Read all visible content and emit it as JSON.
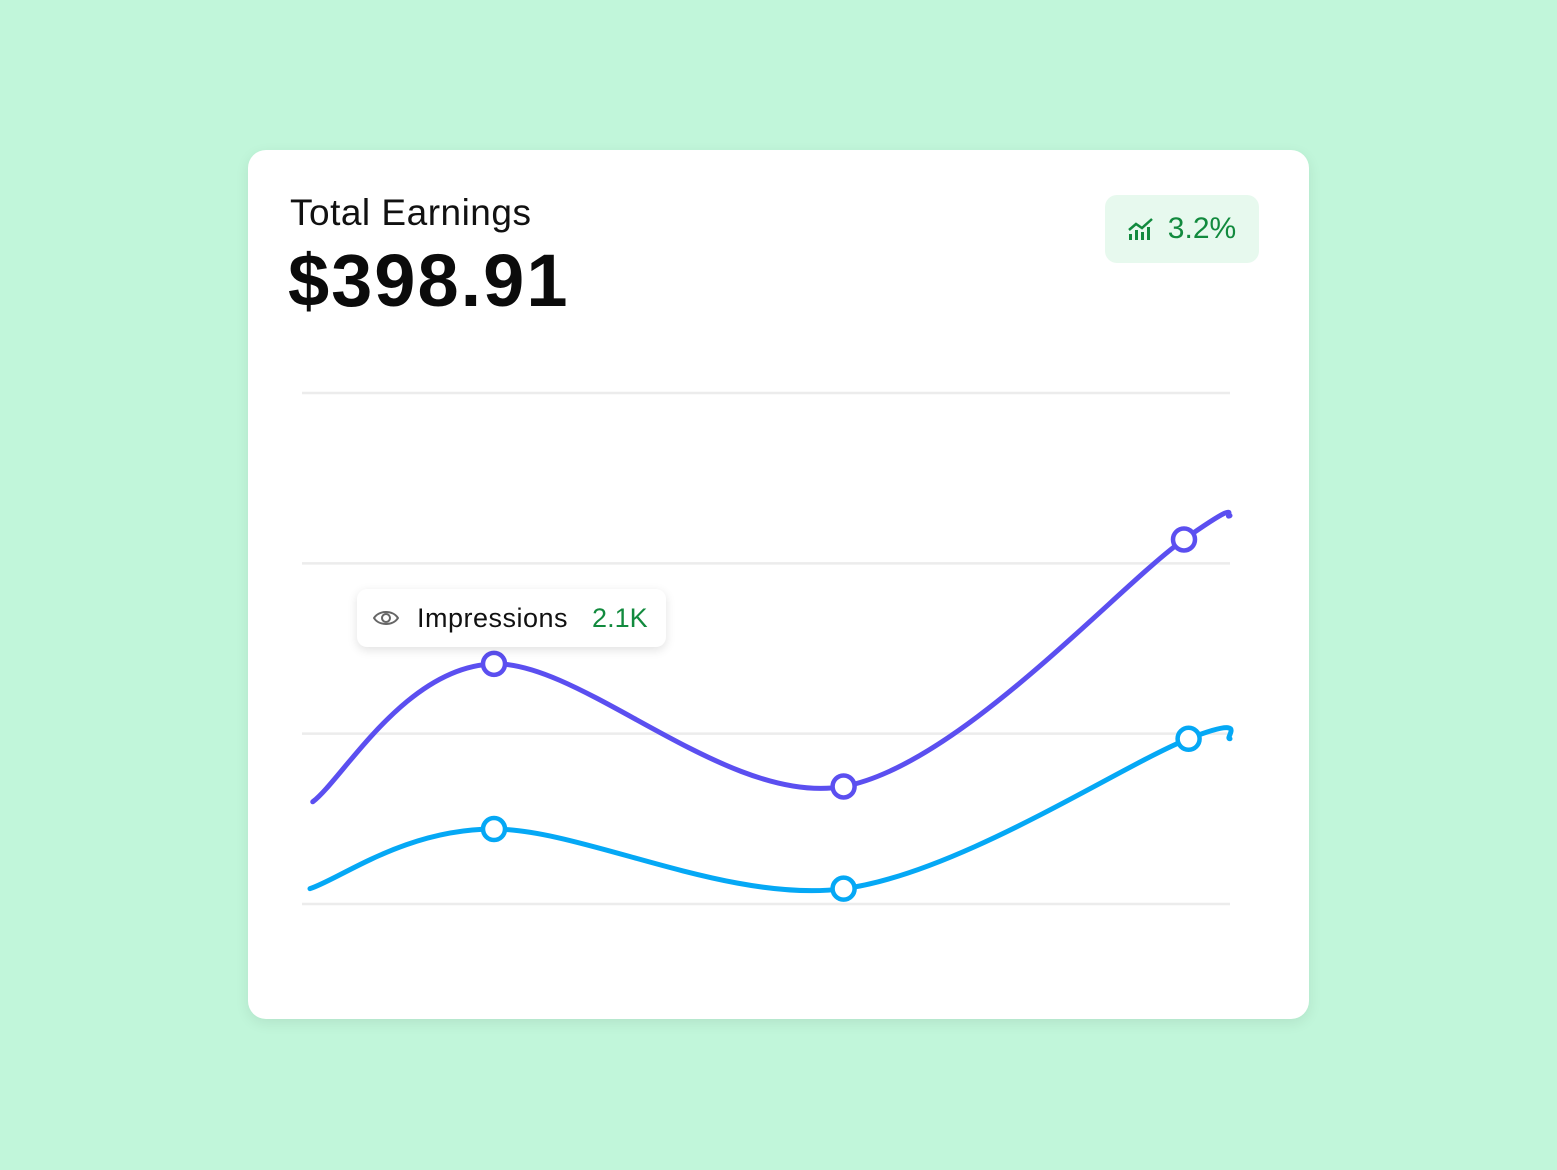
{
  "card": {
    "title": "Total Earnings",
    "amount": "$398.91",
    "badge": {
      "icon": "trend-chart-icon",
      "value": "3.2%",
      "color": "#128a3e"
    }
  },
  "tooltip": {
    "icon": "eye-icon",
    "label": "Impressions",
    "value": "2.1K"
  },
  "chart_data": {
    "type": "line",
    "smooth": true,
    "grid": true,
    "xlim": [
      0,
      10
    ],
    "ylim": [
      0,
      3
    ],
    "series": [
      {
        "color": "#5b4ff0",
        "points": [
          [
            0.03,
            0.6
          ],
          [
            2.0,
            1.41
          ],
          [
            5.8,
            0.69
          ],
          [
            9.5,
            2.14
          ],
          [
            10,
            2.28
          ]
        ],
        "markers": [
          1,
          2,
          3
        ]
      },
      {
        "color": "#05a8f5",
        "points": [
          [
            0,
            0.09
          ],
          [
            2.0,
            0.44
          ],
          [
            5.8,
            0.09
          ],
          [
            9.55,
            0.97
          ],
          [
            10,
            0.97
          ]
        ],
        "markers": [
          1,
          2,
          3
        ]
      }
    ]
  }
}
